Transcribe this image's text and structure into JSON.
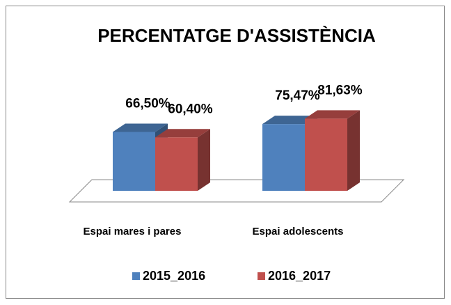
{
  "chart_data": {
    "type": "bar3d",
    "title": "PERCENTATGE  D'ASSISTÈNCIA",
    "categories": [
      "Espai mares i pares",
      "Espai adolescents"
    ],
    "series": [
      {
        "name": "2015_2016",
        "color": "#4f81bd",
        "values": [
          66.5,
          75.47
        ],
        "value_labels": [
          "66,50%",
          "75,47%"
        ]
      },
      {
        "name": "2016_2017",
        "color": "#c0504d",
        "values": [
          60.4,
          81.63
        ],
        "value_labels": [
          "60,40%",
          "81,63%"
        ]
      }
    ],
    "legend": "bottom"
  }
}
